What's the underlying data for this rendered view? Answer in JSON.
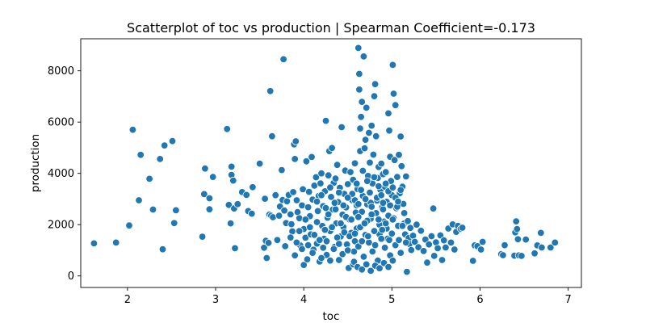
{
  "chart_data": {
    "type": "scatter",
    "title": "Scatterplot of toc vs production | Spearman Coefficient=-0.173",
    "xlabel": "toc",
    "ylabel": "production",
    "xlim": [
      1.47,
      7.15
    ],
    "ylim": [
      -450,
      9250
    ],
    "xticks": [
      2,
      3,
      4,
      5,
      6,
      7
    ],
    "yticks": [
      0,
      2000,
      4000,
      6000,
      8000
    ],
    "grid": false,
    "marker_color": "#1f77b4",
    "marker_edge_color": "#ffffff",
    "points": [
      [
        1.62,
        1270
      ],
      [
        1.87,
        1300
      ],
      [
        2.02,
        1970
      ],
      [
        2.06,
        5700
      ],
      [
        2.13,
        2950
      ],
      [
        2.15,
        4720
      ],
      [
        2.25,
        3790
      ],
      [
        2.29,
        2590
      ],
      [
        2.37,
        4560
      ],
      [
        2.4,
        1040
      ],
      [
        2.42,
        5090
      ],
      [
        2.51,
        5260
      ],
      [
        2.53,
        2060
      ],
      [
        2.55,
        2560
      ],
      [
        2.85,
        1530
      ],
      [
        2.87,
        3190
      ],
      [
        2.88,
        4190
      ],
      [
        2.93,
        3030
      ],
      [
        2.93,
        2600
      ],
      [
        2.97,
        3860
      ],
      [
        3.13,
        5730
      ],
      [
        3.15,
        2770
      ],
      [
        3.17,
        2050
      ],
      [
        3.18,
        3940
      ],
      [
        3.18,
        4260
      ],
      [
        3.2,
        3720
      ],
      [
        3.21,
        2630
      ],
      [
        3.22,
        1080
      ],
      [
        3.25,
        2800
      ],
      [
        3.3,
        3270
      ],
      [
        3.35,
        3160
      ],
      [
        3.37,
        2530
      ],
      [
        3.41,
        2430
      ],
      [
        3.42,
        3460
      ],
      [
        3.5,
        4380
      ],
      [
        3.55,
        1100
      ],
      [
        3.56,
        3010
      ],
      [
        3.57,
        1370
      ],
      [
        3.58,
        700
      ],
      [
        3.6,
        1290
      ],
      [
        3.61,
        2390
      ],
      [
        3.62,
        7210
      ],
      [
        3.63,
        2350
      ],
      [
        3.64,
        5450
      ],
      [
        3.65,
        2290
      ],
      [
        3.68,
        3150
      ],
      [
        3.7,
        1400
      ],
      [
        3.72,
        2350
      ],
      [
        3.73,
        2710
      ],
      [
        3.75,
        4130
      ],
      [
        3.76,
        2960
      ],
      [
        3.77,
        8450
      ],
      [
        3.78,
        2550
      ],
      [
        3.79,
        1160
      ],
      [
        3.8,
        2060
      ],
      [
        3.81,
        2910
      ],
      [
        3.83,
        3160
      ],
      [
        3.85,
        2400
      ],
      [
        3.86,
        2020
      ],
      [
        3.87,
        1740
      ],
      [
        3.88,
        3270
      ],
      [
        3.89,
        5130
      ],
      [
        3.9,
        4560
      ],
      [
        3.91,
        5250
      ],
      [
        3.92,
        2950
      ],
      [
        3.93,
        2490
      ],
      [
        3.95,
        2250
      ],
      [
        3.96,
        1190
      ],
      [
        3.98,
        2750
      ],
      [
        3.99,
        3380
      ],
      [
        4.0,
        1830
      ],
      [
        4.0,
        430
      ],
      [
        4.02,
        1490
      ],
      [
        4.03,
        4470
      ],
      [
        4.05,
        2680
      ],
      [
        4.06,
        3280
      ],
      [
        4.07,
        2330
      ],
      [
        4.08,
        1620
      ],
      [
        4.09,
        4640
      ],
      [
        4.1,
        2980
      ],
      [
        4.11,
        1020
      ],
      [
        4.12,
        3520
      ],
      [
        4.14,
        3850
      ],
      [
        4.15,
        1260
      ],
      [
        4.16,
        2530
      ],
      [
        4.17,
        3120
      ],
      [
        4.18,
        560
      ],
      [
        4.19,
        3610
      ],
      [
        4.2,
        4000
      ],
      [
        4.21,
        1950
      ],
      [
        4.22,
        2720
      ],
      [
        4.23,
        1450
      ],
      [
        4.24,
        3300
      ],
      [
        4.25,
        6050
      ],
      [
        4.26,
        820
      ],
      [
        4.27,
        2270
      ],
      [
        4.28,
        3920
      ],
      [
        4.29,
        4870
      ],
      [
        4.3,
        1750
      ],
      [
        4.31,
        3080
      ],
      [
        4.32,
        4990
      ],
      [
        4.33,
        2590
      ],
      [
        4.34,
        3630
      ],
      [
        4.35,
        1130
      ],
      [
        4.36,
        3800
      ],
      [
        4.37,
        2050
      ],
      [
        4.38,
        4330
      ],
      [
        4.39,
        2880
      ],
      [
        4.4,
        620
      ],
      [
        4.41,
        3440
      ],
      [
        4.42,
        1540
      ],
      [
        4.43,
        5800
      ],
      [
        4.44,
        2390
      ],
      [
        4.45,
        1910
      ],
      [
        4.46,
        3200
      ],
      [
        4.47,
        4110
      ],
      [
        4.48,
        2670
      ],
      [
        4.49,
        1230
      ],
      [
        4.5,
        3580
      ],
      [
        4.51,
        310
      ],
      [
        4.52,
        2200
      ],
      [
        4.53,
        4050
      ],
      [
        4.54,
        1680
      ],
      [
        4.55,
        2950
      ],
      [
        4.56,
        3750
      ],
      [
        4.57,
        950
      ],
      [
        4.58,
        4390
      ],
      [
        4.59,
        2470
      ],
      [
        4.6,
        1850
      ],
      [
        4.61,
        3390
      ],
      [
        4.62,
        8890
      ],
      [
        4.63,
        7270
      ],
      [
        4.63,
        7880
      ],
      [
        4.64,
        4870
      ],
      [
        4.64,
        5750
      ],
      [
        4.65,
        6200
      ],
      [
        4.66,
        6790
      ],
      [
        4.67,
        3120
      ],
      [
        4.68,
        8560
      ],
      [
        4.69,
        4980
      ],
      [
        4.7,
        5310
      ],
      [
        4.71,
        6560
      ],
      [
        4.72,
        2790
      ],
      [
        4.73,
        3900
      ],
      [
        4.74,
        5580
      ],
      [
        4.75,
        4420
      ],
      [
        4.76,
        2230
      ],
      [
        4.77,
        5860
      ],
      [
        4.78,
        3610
      ],
      [
        4.79,
        4730
      ],
      [
        4.8,
        7010
      ],
      [
        4.81,
        7480
      ],
      [
        4.82,
        5450
      ],
      [
        4.83,
        2940
      ],
      [
        4.84,
        3820
      ],
      [
        4.85,
        4250
      ],
      [
        4.86,
        1620
      ],
      [
        4.87,
        3350
      ],
      [
        4.88,
        4380
      ],
      [
        4.89,
        2680
      ],
      [
        4.9,
        3970
      ],
      [
        4.91,
        2120
      ],
      [
        4.92,
        3480
      ],
      [
        4.93,
        4050
      ],
      [
        4.94,
        2890
      ],
      [
        4.95,
        1450
      ],
      [
        4.96,
        6340
      ],
      [
        4.97,
        5670
      ],
      [
        4.98,
        4650
      ],
      [
        4.99,
        3700
      ],
      [
        5.0,
        3150
      ],
      [
        5.01,
        8230
      ],
      [
        5.02,
        7110
      ],
      [
        5.03,
        4520
      ],
      [
        5.04,
        6660
      ],
      [
        5.05,
        2640
      ],
      [
        5.06,
        3860
      ],
      [
        5.07,
        1950
      ],
      [
        5.08,
        4720
      ],
      [
        5.09,
        3230
      ],
      [
        5.1,
        5440
      ],
      [
        5.11,
        4280
      ],
      [
        5.12,
        3480
      ],
      [
        5.13,
        2810
      ],
      [
        5.14,
        2050
      ],
      [
        5.15,
        1620
      ],
      [
        5.16,
        3880
      ],
      [
        5.17,
        160
      ],
      [
        5.18,
        2140
      ],
      [
        5.19,
        1480
      ],
      [
        5.2,
        1240
      ],
      [
        5.21,
        1870
      ],
      [
        5.22,
        1010
      ],
      [
        5.24,
        1570
      ],
      [
        5.26,
        1330
      ],
      [
        5.28,
        2000
      ],
      [
        5.3,
        1120
      ],
      [
        5.33,
        1760
      ],
      [
        5.36,
        970
      ],
      [
        5.38,
        1420
      ],
      [
        5.4,
        520
      ],
      [
        5.42,
        1230
      ],
      [
        5.45,
        1550
      ],
      [
        5.47,
        2630
      ],
      [
        5.48,
        780
      ],
      [
        5.5,
        1310
      ],
      [
        5.52,
        1080
      ],
      [
        5.55,
        1580
      ],
      [
        5.57,
        620
      ],
      [
        5.59,
        1390
      ],
      [
        5.61,
        1110
      ],
      [
        5.64,
        1850
      ],
      [
        5.67,
        1300
      ],
      [
        5.69,
        2010
      ],
      [
        5.71,
        1030
      ],
      [
        5.73,
        1720
      ],
      [
        5.75,
        1950
      ],
      [
        5.78,
        1840
      ],
      [
        5.8,
        1880
      ],
      [
        5.92,
        590
      ],
      [
        5.94,
        1190
      ],
      [
        5.97,
        1160
      ],
      [
        6.01,
        1030
      ],
      [
        6.03,
        1330
      ],
      [
        6.24,
        850
      ],
      [
        6.26,
        810
      ],
      [
        6.28,
        1200
      ],
      [
        6.39,
        790
      ],
      [
        6.4,
        1700
      ],
      [
        6.41,
        2130
      ],
      [
        6.42,
        1830
      ],
      [
        6.43,
        1430
      ],
      [
        6.44,
        800
      ],
      [
        6.47,
        780
      ],
      [
        6.52,
        1420
      ],
      [
        6.62,
        880
      ],
      [
        6.65,
        1190
      ],
      [
        6.69,
        1680
      ],
      [
        6.7,
        1110
      ],
      [
        6.8,
        1110
      ],
      [
        6.85,
        1300
      ],
      [
        4.05,
        1200
      ],
      [
        4.1,
        900
      ],
      [
        4.12,
        1600
      ],
      [
        4.15,
        2100
      ],
      [
        4.18,
        1400
      ],
      [
        4.2,
        700
      ],
      [
        4.22,
        1100
      ],
      [
        4.24,
        1800
      ],
      [
        4.26,
        1350
      ],
      [
        4.28,
        2400
      ],
      [
        4.3,
        600
      ],
      [
        4.32,
        1900
      ],
      [
        4.34,
        1050
      ],
      [
        4.36,
        2600
      ],
      [
        4.38,
        1500
      ],
      [
        4.4,
        1250
      ],
      [
        4.42,
        2050
      ],
      [
        4.44,
        850
      ],
      [
        4.46,
        1700
      ],
      [
        4.48,
        2300
      ],
      [
        4.5,
        1000
      ],
      [
        4.52,
        1550
      ],
      [
        4.54,
        2200
      ],
      [
        4.56,
        450
      ],
      [
        4.58,
        1350
      ],
      [
        4.6,
        2750
      ],
      [
        4.62,
        1150
      ],
      [
        4.64,
        1900
      ],
      [
        4.66,
        2500
      ],
      [
        4.68,
        750
      ],
      [
        4.7,
        1600
      ],
      [
        4.72,
        2150
      ],
      [
        4.74,
        1300
      ],
      [
        4.76,
        2850
      ],
      [
        4.78,
        950
      ],
      [
        4.8,
        1750
      ],
      [
        4.82,
        2450
      ],
      [
        4.84,
        600
      ],
      [
        4.86,
        2000
      ],
      [
        4.88,
        1450
      ],
      [
        4.9,
        2600
      ],
      [
        4.92,
        1100
      ],
      [
        4.94,
        1850
      ],
      [
        4.96,
        2350
      ],
      [
        4.98,
        800
      ],
      [
        5.0,
        1650
      ],
      [
        5.02,
        2250
      ],
      [
        5.04,
        1200
      ],
      [
        5.06,
        2700
      ],
      [
        5.08,
        1400
      ],
      [
        5.1,
        900
      ],
      [
        5.12,
        1950
      ],
      [
        5.14,
        2450
      ],
      [
        5.16,
        1300
      ],
      [
        4.55,
        3200
      ],
      [
        4.58,
        2950
      ],
      [
        4.6,
        3600
      ],
      [
        4.62,
        2800
      ],
      [
        4.65,
        3350
      ],
      [
        4.67,
        4100
      ],
      [
        4.7,
        3000
      ],
      [
        4.72,
        3700
      ],
      [
        4.75,
        3250
      ],
      [
        4.77,
        2700
      ],
      [
        4.8,
        3850
      ],
      [
        4.83,
        3050
      ],
      [
        4.85,
        3500
      ],
      [
        4.88,
        3150
      ],
      [
        4.9,
        2850
      ],
      [
        4.93,
        3600
      ],
      [
        4.96,
        3300
      ],
      [
        4.98,
        2750
      ],
      [
        5.01,
        3450
      ],
      [
        5.04,
        3050
      ],
      [
        5.07,
        2900
      ],
      [
        5.1,
        3350
      ],
      [
        4.15,
        2900
      ],
      [
        4.2,
        3150
      ],
      [
        4.25,
        2650
      ],
      [
        4.3,
        3450
      ],
      [
        4.35,
        2850
      ],
      [
        4.4,
        3250
      ],
      [
        4.45,
        2750
      ],
      [
        4.5,
        3050
      ],
      [
        3.85,
        1500
      ],
      [
        3.9,
        800
      ],
      [
        3.92,
        1300
      ],
      [
        3.95,
        1750
      ],
      [
        3.98,
        1050
      ],
      [
        4.02,
        2200
      ],
      [
        4.04,
        650
      ],
      [
        4.07,
        1900
      ],
      [
        4.57,
        550
      ],
      [
        4.61,
        350
      ],
      [
        4.66,
        250
      ],
      [
        4.71,
        450
      ],
      [
        4.76,
        200
      ],
      [
        4.81,
        400
      ],
      [
        4.86,
        300
      ],
      [
        4.91,
        500
      ],
      [
        4.96,
        350
      ],
      [
        5.01,
        600
      ],
      [
        4.58,
        1650
      ],
      [
        4.62,
        2300
      ],
      [
        4.66,
        1350
      ],
      [
        4.69,
        2050
      ],
      [
        4.73,
        1550
      ],
      [
        4.77,
        2400
      ],
      [
        4.81,
        1200
      ],
      [
        4.85,
        2200
      ],
      [
        4.89,
        1800
      ],
      [
        4.93,
        2050
      ],
      [
        4.97,
        1400
      ],
      [
        5.01,
        2200
      ]
    ]
  }
}
